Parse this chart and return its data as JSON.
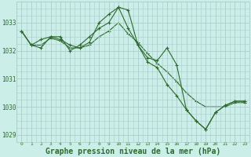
{
  "background_color": "#cceee8",
  "grid_color": "#aacccc",
  "line_color": "#2d6a2d",
  "title": "Graphe pression niveau de la mer (hPa)",
  "ylim": [
    1028.75,
    1033.75
  ],
  "yticks": [
    1029,
    1030,
    1031,
    1032,
    1033
  ],
  "xlim": [
    -0.5,
    23.5
  ],
  "xticks": [
    0,
    1,
    2,
    3,
    4,
    5,
    6,
    7,
    8,
    9,
    10,
    11,
    12,
    13,
    14,
    15,
    16,
    17,
    18,
    19,
    20,
    21,
    22,
    23
  ],
  "series": [
    [
      1032.7,
      1032.2,
      1032.1,
      1032.5,
      1032.4,
      1032.2,
      1032.1,
      1032.3,
      1033.0,
      1033.3,
      1033.55,
      1033.45,
      1032.2,
      1031.75,
      1031.65,
      1032.1,
      1031.5,
      1029.9,
      1029.5,
      1029.2,
      1029.8,
      1030.05,
      1030.2,
      1030.2
    ],
    [
      1032.7,
      1032.2,
      1032.4,
      1032.5,
      1032.5,
      1032.0,
      1032.2,
      1032.5,
      1032.8,
      1033.0,
      1033.55,
      1032.8,
      1032.2,
      1031.6,
      1031.4,
      1030.8,
      1030.4,
      1029.9,
      1029.5,
      1029.2,
      1029.8,
      1030.05,
      1030.2,
      1030.2
    ],
    [
      1032.7,
      1032.2,
      1032.2,
      1032.45,
      1032.35,
      1032.1,
      1032.1,
      1032.2,
      1032.5,
      1032.7,
      1033.0,
      1032.6,
      1032.3,
      1031.9,
      1031.55,
      1031.25,
      1030.9,
      1030.5,
      1030.2,
      1030.0,
      1030.0,
      1030.0,
      1030.15,
      1030.15
    ]
  ]
}
